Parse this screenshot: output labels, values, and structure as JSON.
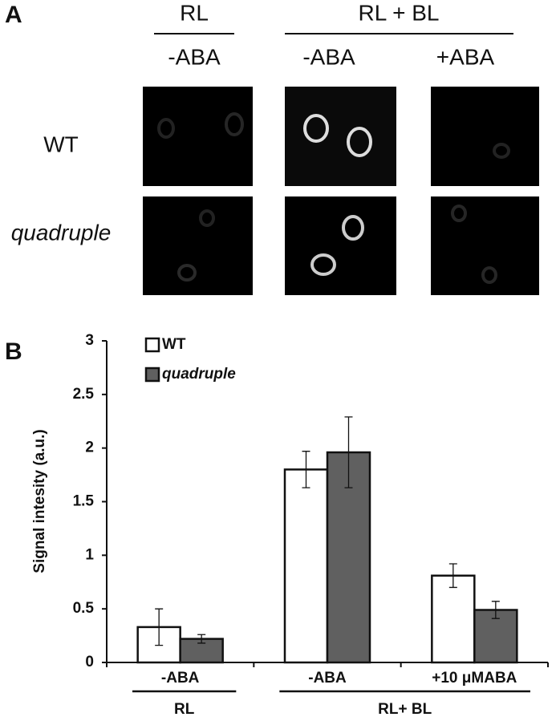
{
  "panel_a": {
    "label": "A",
    "column_groups": [
      "RL",
      "RL + BL"
    ],
    "columns": [
      "-ABA",
      "-ABA",
      "+ABA"
    ],
    "rows": [
      "WT",
      "quadruple"
    ]
  },
  "chart_data": {
    "type": "bar",
    "panel_label": "B",
    "ylabel": "Signal intesity (a.u.)",
    "categories": [
      "-ABA",
      "-ABA",
      "+10 μMABA"
    ],
    "groups": [
      {
        "label": "RL",
        "categories": [
          0
        ]
      },
      {
        "label": "RL+ BL",
        "categories": [
          1,
          2
        ]
      }
    ],
    "series": [
      {
        "name": "WT",
        "color": "#ffffff",
        "values": [
          0.33,
          1.8,
          0.81
        ],
        "errors": [
          0.17,
          0.17,
          0.11
        ]
      },
      {
        "name": "quadruple",
        "color": "#606060",
        "values": [
          0.22,
          1.96,
          0.49
        ],
        "errors": [
          0.04,
          0.33,
          0.08
        ]
      }
    ],
    "ylim": [
      0,
      3
    ],
    "yticks": [
      0,
      0.5,
      1,
      1.5,
      2,
      2.5,
      3
    ],
    "grid": false,
    "legend": "upper left"
  }
}
